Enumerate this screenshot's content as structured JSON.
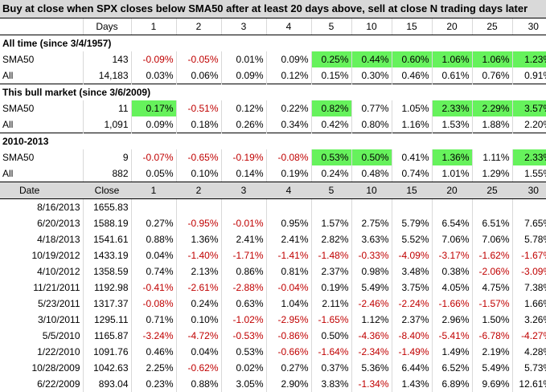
{
  "title": "Buy at close when SPX closes below SMA50 after at least 20 days above, sell at close N trading days later",
  "summary_header": {
    "label": "Days",
    "cols": [
      "1",
      "2",
      "3",
      "4",
      "5",
      "10",
      "15",
      "20",
      "25",
      "30"
    ]
  },
  "sections": [
    {
      "title": "All time (since 3/4/1957)",
      "rows": [
        {
          "label": "SMA50",
          "count": "143",
          "values": [
            "-0.09%",
            "-0.05%",
            "0.01%",
            "0.09%",
            "0.25%",
            "0.44%",
            "0.60%",
            "1.06%",
            "1.06%",
            "1.23%"
          ],
          "highlight": [
            false,
            false,
            false,
            false,
            true,
            true,
            true,
            true,
            true,
            true
          ]
        },
        {
          "label": "All",
          "count": "14,183",
          "values": [
            "0.03%",
            "0.06%",
            "0.09%",
            "0.12%",
            "0.15%",
            "0.30%",
            "0.46%",
            "0.61%",
            "0.76%",
            "0.91%"
          ],
          "highlight": [
            false,
            false,
            false,
            false,
            false,
            false,
            false,
            false,
            false,
            false
          ]
        }
      ]
    },
    {
      "title": "This bull market (since 3/6/2009)",
      "rows": [
        {
          "label": "SMA50",
          "count": "11",
          "values": [
            "0.17%",
            "-0.51%",
            "0.12%",
            "0.22%",
            "0.82%",
            "0.77%",
            "1.05%",
            "2.33%",
            "2.29%",
            "3.57%"
          ],
          "highlight": [
            true,
            false,
            false,
            false,
            true,
            false,
            false,
            true,
            true,
            true
          ]
        },
        {
          "label": "All",
          "count": "1,091",
          "values": [
            "0.09%",
            "0.18%",
            "0.26%",
            "0.34%",
            "0.42%",
            "0.80%",
            "1.16%",
            "1.53%",
            "1.88%",
            "2.20%"
          ],
          "highlight": [
            false,
            false,
            false,
            false,
            false,
            false,
            false,
            false,
            false,
            false
          ]
        }
      ]
    },
    {
      "title": "2010-2013",
      "rows": [
        {
          "label": "SMA50",
          "count": "9",
          "values": [
            "-0.07%",
            "-0.65%",
            "-0.19%",
            "-0.08%",
            "0.53%",
            "0.50%",
            "0.41%",
            "1.36%",
            "1.11%",
            "2.33%"
          ],
          "highlight": [
            false,
            false,
            false,
            false,
            true,
            true,
            false,
            true,
            false,
            true
          ]
        },
        {
          "label": "All",
          "count": "882",
          "values": [
            "0.05%",
            "0.10%",
            "0.14%",
            "0.19%",
            "0.24%",
            "0.48%",
            "0.74%",
            "1.01%",
            "1.29%",
            "1.55%"
          ],
          "highlight": [
            false,
            false,
            false,
            false,
            false,
            false,
            false,
            false,
            false,
            false
          ]
        }
      ]
    }
  ],
  "detail_header": {
    "date": "Date",
    "close": "Close",
    "cols": [
      "1",
      "2",
      "3",
      "4",
      "5",
      "10",
      "15",
      "20",
      "25",
      "30"
    ]
  },
  "detail_rows": [
    {
      "date": "8/16/2013",
      "close": "1655.83",
      "values": [
        "",
        "",
        "",
        "",
        "",
        "",
        "",
        "",
        "",
        ""
      ]
    },
    {
      "date": "6/20/2013",
      "close": "1588.19",
      "values": [
        "0.27%",
        "-0.95%",
        "-0.01%",
        "0.95%",
        "1.57%",
        "2.75%",
        "5.79%",
        "6.54%",
        "6.51%",
        "7.65%"
      ]
    },
    {
      "date": "4/18/2013",
      "close": "1541.61",
      "values": [
        "0.88%",
        "1.36%",
        "2.41%",
        "2.41%",
        "2.82%",
        "3.63%",
        "5.52%",
        "7.06%",
        "7.06%",
        "5.78%"
      ]
    },
    {
      "date": "10/19/2012",
      "close": "1433.19",
      "values": [
        "0.04%",
        "-1.40%",
        "-1.71%",
        "-1.41%",
        "-1.48%",
        "-0.33%",
        "-4.09%",
        "-3.17%",
        "-1.62%",
        "-1.67%"
      ]
    },
    {
      "date": "4/10/2012",
      "close": "1358.59",
      "values": [
        "0.74%",
        "2.13%",
        "0.86%",
        "0.81%",
        "2.37%",
        "0.98%",
        "3.48%",
        "0.38%",
        "-2.06%",
        "-3.09%"
      ]
    },
    {
      "date": "11/21/2011",
      "close": "1192.98",
      "values": [
        "-0.41%",
        "-2.61%",
        "-2.88%",
        "-0.04%",
        "0.19%",
        "5.49%",
        "3.75%",
        "4.05%",
        "4.75%",
        "7.38%"
      ]
    },
    {
      "date": "5/23/2011",
      "close": "1317.37",
      "values": [
        "-0.08%",
        "0.24%",
        "0.63%",
        "1.04%",
        "2.11%",
        "-2.46%",
        "-2.24%",
        "-1.66%",
        "-1.57%",
        "1.66%"
      ]
    },
    {
      "date": "3/10/2011",
      "close": "1295.11",
      "values": [
        "0.71%",
        "0.10%",
        "-1.02%",
        "-2.95%",
        "-1.65%",
        "1.12%",
        "2.37%",
        "2.96%",
        "1.50%",
        "3.26%"
      ]
    },
    {
      "date": "5/5/2010",
      "close": "1165.87",
      "values": [
        "-3.24%",
        "-4.72%",
        "-0.53%",
        "-0.86%",
        "0.50%",
        "-4.36%",
        "-8.40%",
        "-5.41%",
        "-6.78%",
        "-4.27%"
      ]
    },
    {
      "date": "1/22/2010",
      "close": "1091.76",
      "values": [
        "0.46%",
        "0.04%",
        "0.53%",
        "-0.66%",
        "-1.64%",
        "-2.34%",
        "-1.49%",
        "1.49%",
        "2.19%",
        "4.28%"
      ]
    },
    {
      "date": "10/28/2009",
      "close": "1042.63",
      "values": [
        "2.25%",
        "-0.62%",
        "0.02%",
        "0.27%",
        "0.37%",
        "5.36%",
        "6.44%",
        "6.52%",
        "5.49%",
        "5.73%"
      ]
    },
    {
      "date": "6/22/2009",
      "close": "893.04",
      "values": [
        "0.23%",
        "0.88%",
        "3.05%",
        "2.90%",
        "3.83%",
        "-1.34%",
        "1.43%",
        "6.89%",
        "9.69%",
        "12.61%"
      ]
    }
  ],
  "colors": {
    "highlight": "#66f25c",
    "negative": "#c00000",
    "header_bg": "#d9d9d9"
  }
}
